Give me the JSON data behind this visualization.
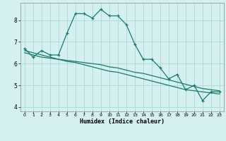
{
  "xlabel": "Humidex (Indice chaleur)",
  "bg_color": "#d4f0f0",
  "grid_color": "#b0ddd8",
  "line_color": "#1a7a6e",
  "line1_x": [
    0,
    1,
    2,
    3,
    4,
    5,
    6,
    7,
    8,
    9,
    10,
    11,
    12,
    13,
    14,
    15,
    16,
    17,
    18,
    19,
    20,
    21,
    22,
    23
  ],
  "line1_y": [
    6.7,
    6.3,
    6.6,
    6.4,
    6.4,
    7.4,
    8.3,
    8.3,
    8.1,
    8.5,
    8.2,
    8.2,
    7.8,
    6.9,
    6.2,
    6.2,
    5.8,
    5.3,
    5.5,
    4.8,
    5.0,
    4.3,
    4.7,
    4.7
  ],
  "line2_x": [
    0,
    1,
    2,
    3,
    4,
    5,
    6,
    7,
    8,
    9,
    10,
    11,
    12,
    13,
    14,
    15,
    16,
    17,
    18,
    19,
    20,
    21,
    22,
    23
  ],
  "line2_y": [
    6.6,
    6.5,
    6.4,
    6.3,
    6.2,
    6.15,
    6.1,
    6.05,
    6.0,
    5.95,
    5.85,
    5.8,
    5.7,
    5.6,
    5.55,
    5.45,
    5.35,
    5.25,
    5.15,
    5.05,
    4.95,
    4.85,
    4.8,
    4.75
  ],
  "line3_x": [
    0,
    1,
    2,
    3,
    4,
    5,
    6,
    7,
    8,
    9,
    10,
    11,
    12,
    13,
    14,
    15,
    16,
    17,
    18,
    19,
    20,
    21,
    22,
    23
  ],
  "line3_y": [
    6.5,
    6.4,
    6.3,
    6.25,
    6.2,
    6.1,
    6.05,
    5.95,
    5.85,
    5.75,
    5.65,
    5.6,
    5.5,
    5.4,
    5.3,
    5.2,
    5.1,
    5.0,
    4.9,
    4.8,
    4.75,
    4.7,
    4.65,
    4.6
  ],
  "xlim": [
    -0.5,
    23.5
  ],
  "ylim": [
    3.8,
    8.8
  ],
  "yticks": [
    4,
    5,
    6,
    7,
    8
  ],
  "xticks": [
    0,
    1,
    2,
    3,
    4,
    5,
    6,
    7,
    8,
    9,
    10,
    11,
    12,
    13,
    14,
    15,
    16,
    17,
    18,
    19,
    20,
    21,
    22,
    23
  ]
}
